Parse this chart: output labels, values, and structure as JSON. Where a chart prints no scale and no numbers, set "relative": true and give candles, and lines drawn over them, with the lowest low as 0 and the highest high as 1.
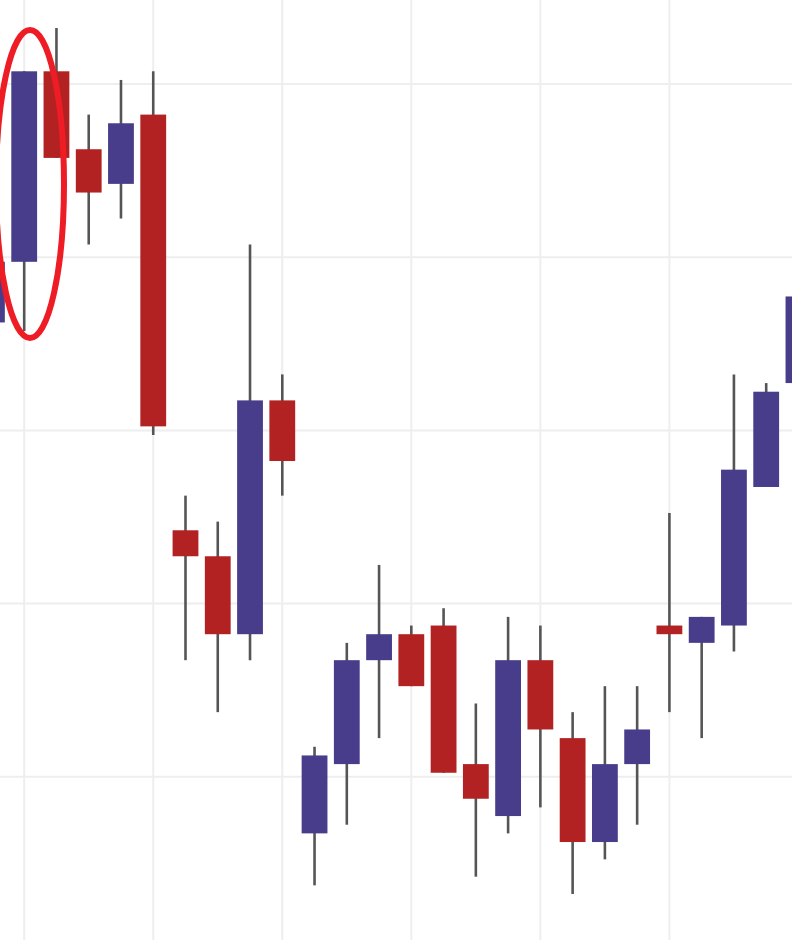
{
  "chart_data": {
    "type": "candlestick",
    "relative": true,
    "grid": true,
    "categories": [
      null,
      null,
      null,
      null,
      null,
      null,
      null,
      null,
      null,
      null,
      null,
      null,
      null,
      null,
      null,
      null,
      null,
      null,
      null,
      null,
      null,
      null,
      null,
      null,
      null,
      null
    ],
    "ohlc": [
      [
        0.66,
        0.73,
        0.66,
        0.73
      ],
      [
        0.73,
        0.95,
        0.65,
        0.95
      ],
      [
        0.95,
        1,
        0.85,
        0.85
      ],
      [
        0.86,
        0.9,
        0.75,
        0.81
      ],
      [
        0.82,
        0.94,
        0.78,
        0.89
      ],
      [
        0.9,
        0.95,
        0.53,
        0.54
      ],
      [
        0.42,
        0.46,
        0.27,
        0.39
      ],
      [
        0.39,
        0.43,
        0.21,
        0.3
      ],
      [
        0.3,
        0.75,
        0.27,
        0.57
      ],
      [
        0.57,
        0.6,
        0.46,
        0.5
      ],
      [
        0.07,
        0.17,
        0.01,
        0.16
      ],
      [
        0.15,
        0.29,
        0.08,
        0.27
      ],
      [
        0.27,
        0.38,
        0.18,
        0.3
      ],
      [
        0.3,
        0.31,
        0.24,
        0.24
      ],
      [
        0.31,
        0.33,
        0.14,
        0.14
      ],
      [
        0.15,
        0.22,
        0.02,
        0.11
      ],
      [
        0.09,
        0.32,
        0.07,
        0.27
      ],
      [
        0.27,
        0.31,
        0.1,
        0.19
      ],
      [
        0.18,
        0.21,
        0,
        0.06
      ],
      [
        0.06,
        0.24,
        0.04,
        0.15
      ],
      [
        0.15,
        0.24,
        0.08,
        0.19
      ],
      [
        0.31,
        0.44,
        0.21,
        0.3
      ],
      [
        0.29,
        0.32,
        0.18,
        0.32
      ],
      [
        0.31,
        0.6,
        0.28,
        0.49
      ],
      [
        0.47,
        0.59,
        0.47,
        0.58
      ],
      [
        0.59,
        0.69,
        0.59,
        0.69
      ]
    ],
    "colors": [
      "#483d8b",
      "#483d8b",
      "#b22222",
      "#b22222",
      "#483d8b",
      "#b22222",
      "#b22222",
      "#b22222",
      "#483d8b",
      "#b22222",
      "#483d8b",
      "#483d8b",
      "#483d8b",
      "#b22222",
      "#b22222",
      "#b22222",
      "#483d8b",
      "#b22222",
      "#b22222",
      "#483d8b",
      "#483d8b",
      "#b22222",
      "#483d8b",
      "#483d8b",
      "#483d8b",
      "#483d8b"
    ]
  }
}
